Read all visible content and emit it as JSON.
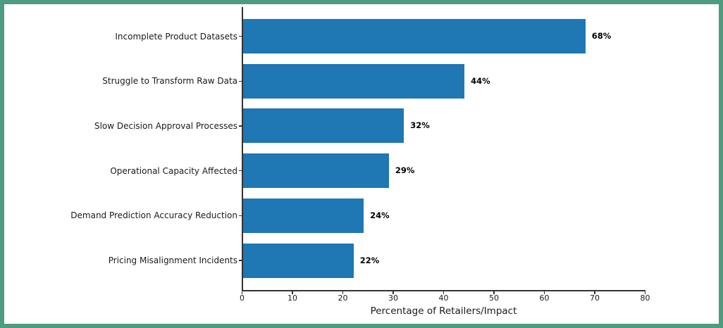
{
  "figure": {
    "frame_color": "#4E9C80",
    "background_color": "#ffffff"
  },
  "chart_data": {
    "type": "bar",
    "orientation": "horizontal",
    "categories": [
      "Incomplete Product Datasets",
      "Struggle to Transform Raw Data",
      "Slow Decision Approval Processes",
      "Operational Capacity Affected",
      "Demand Prediction Accuracy Reduction",
      "Pricing Misalignment Incidents"
    ],
    "values": [
      68,
      44,
      32,
      29,
      24,
      22
    ],
    "value_labels": [
      "68%",
      "44%",
      "32%",
      "29%",
      "24%",
      "22%"
    ],
    "xlabel": "Percentage of Retailers/Impact",
    "ylabel": "",
    "xlim": [
      0,
      80
    ],
    "xticks": [
      0,
      10,
      20,
      30,
      40,
      50,
      60,
      70,
      80
    ],
    "bar_color": "#1f77b4",
    "grid": false,
    "legend": "none"
  }
}
